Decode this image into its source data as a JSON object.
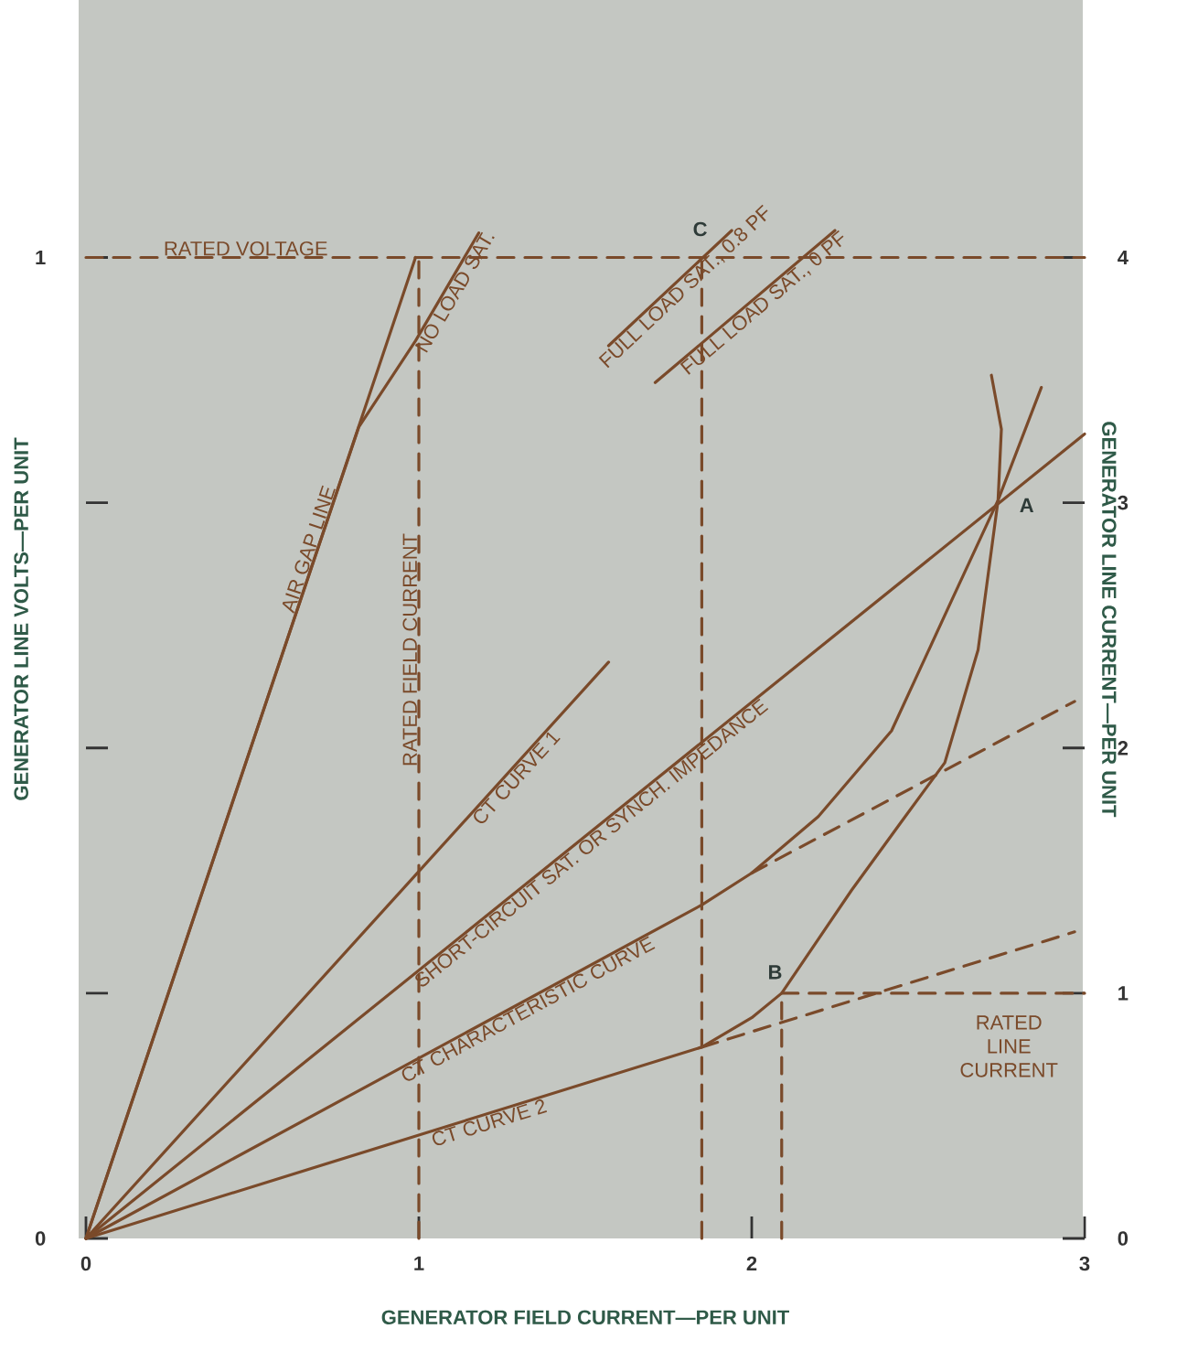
{
  "chart_data": {
    "type": "line",
    "xlabel": "GENERATOR FIELD CURRENT—PER UNIT",
    "ylabel": "GENERATOR LINE VOLTS—PER UNIT",
    "y2label": "GENERATOR LINE CURRENT—PER UNIT",
    "xlim": [
      0,
      3
    ],
    "xticks": [
      0,
      1,
      2,
      3
    ],
    "ylim": [
      0,
      1.2625
    ],
    "yticks": [
      0,
      {
        "value": 0.25,
        "label": null
      },
      {
        "value": 0.5,
        "label": null
      },
      {
        "value": 0.75,
        "label": null
      },
      1
    ],
    "y2lim": [
      0,
      5.05
    ],
    "y2ticks": [
      0,
      1,
      2,
      3,
      4
    ],
    "series": [
      {
        "name": "AIR GAP LINE",
        "axis": "y2",
        "color": "#7a4a2a",
        "x": [
          0,
          0.99
        ],
        "values": [
          0,
          4.0
        ]
      },
      {
        "name": "NO LOAD SAT.",
        "axis": "y2",
        "color": "#7a4a2a",
        "x": [
          0,
          0.5,
          0.82,
          0.99,
          1.18
        ],
        "values": [
          0,
          2.02,
          3.31,
          3.66,
          4.1
        ]
      },
      {
        "name": "RATED FIELD CURRENT",
        "axis": "y2",
        "color": "#7a4a2a",
        "line_style": "dashed",
        "x": [
          1,
          1
        ],
        "values": [
          0,
          4
        ]
      },
      {
        "name": "RATED VOLTAGE",
        "axis": "y2",
        "color": "#7a4a2a",
        "line_style": "dashed",
        "x": [
          0,
          3
        ],
        "values": [
          4,
          4
        ]
      },
      {
        "name": "FULL LOAD SAT., 0.8 PF",
        "axis": "y2",
        "color": "#7a4a2a",
        "x": [
          1.57,
          1.94
        ],
        "values": [
          3.64,
          4.11
        ]
      },
      {
        "name": "FULL LOAD SAT., 0 PF",
        "axis": "y2",
        "color": "#7a4a2a",
        "x": [
          1.71,
          2.25
        ],
        "values": [
          3.49,
          4.11
        ]
      },
      {
        "name": "CT CURVE 1",
        "axis": "y2",
        "color": "#7a4a2a",
        "x": [
          0,
          1.57
        ],
        "values": [
          0,
          2.35
        ]
      },
      {
        "name": "SHORT-CIRCUIT SAT. OR SYNCH. IMPEDANCE",
        "axis": "y2",
        "color": "#7a4a2a",
        "x": [
          0,
          3.0
        ],
        "values": [
          0,
          3.28
        ]
      },
      {
        "name": "CT CHARACTERISTIC CURVE",
        "axis": "y2",
        "color": "#7a4a2a",
        "x": [
          0,
          1.85,
          2.0,
          2.2,
          2.42,
          2.6,
          2.74,
          2.87
        ],
        "values": [
          0,
          1.36,
          1.49,
          1.72,
          2.07,
          2.6,
          3.01,
          3.47
        ]
      },
      {
        "name": "CT CURVE 2",
        "axis": "y2",
        "color": "#7a4a2a",
        "x": [
          0,
          1.85,
          2.0,
          2.09,
          2.3,
          2.45,
          2.58,
          2.68,
          2.74,
          2.75,
          2.72
        ],
        "values": [
          0,
          0.78,
          0.9,
          1.0,
          1.42,
          1.7,
          1.94,
          2.4,
          3.01,
          3.3,
          3.52
        ]
      },
      {
        "axis": "y2",
        "color": "#7a4a2a",
        "line_style": "dashed",
        "x": [
          2.0,
          2.97
        ],
        "values": [
          1.49,
          2.19
        ]
      },
      {
        "axis": "y2",
        "color": "#7a4a2a",
        "line_style": "dashed",
        "x": [
          1.85,
          2.97
        ],
        "values": [
          0.78,
          1.25
        ]
      },
      {
        "axis": "y2",
        "color": "#7a4a2a",
        "line_style": "dashed",
        "x": [
          1.85,
          1.85
        ],
        "values": [
          0,
          4
        ]
      },
      {
        "axis": "y2",
        "color": "#7a4a2a",
        "line_style": "dashed",
        "x": [
          2.09,
          2.09
        ],
        "values": [
          0,
          1
        ]
      },
      {
        "name": "RATED LINE CURRENT",
        "axis": "y2",
        "color": "#7a4a2a",
        "line_style": "dashed",
        "x": [
          2.09,
          3
        ],
        "values": [
          1,
          1
        ]
      }
    ],
    "annotations": [
      "A",
      "B",
      "C"
    ]
  }
}
